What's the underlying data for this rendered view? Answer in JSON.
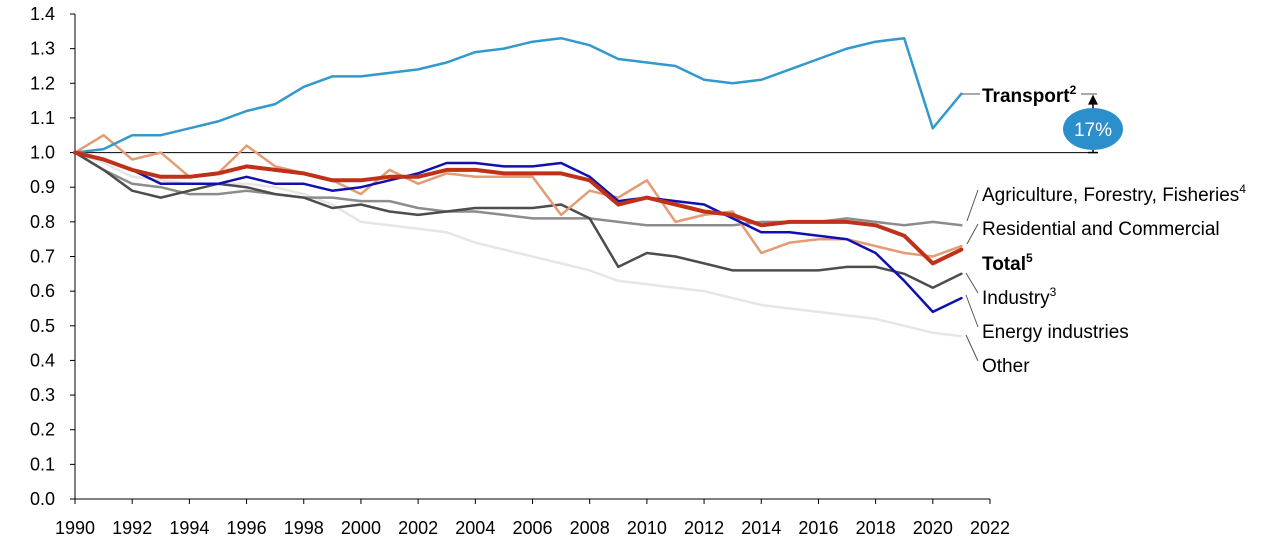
{
  "chart_data": {
    "type": "line",
    "title": "",
    "xlabel": "",
    "ylabel": "",
    "xlim": [
      1990,
      2022
    ],
    "ylim": [
      0,
      1.4
    ],
    "x_ticks": [
      "1990",
      "1992",
      "1994",
      "1996",
      "1998",
      "2000",
      "2002",
      "2004",
      "2006",
      "2008",
      "2010",
      "2012",
      "2014",
      "2016",
      "2018",
      "2020",
      "2022"
    ],
    "y_ticks": [
      "0.0",
      "0.1",
      "0.2",
      "0.3",
      "0.4",
      "0.5",
      "0.6",
      "0.7",
      "0.8",
      "0.9",
      "1.0",
      "1.1",
      "1.2",
      "1.3",
      "1.4"
    ],
    "reference_line": 1.0,
    "x": [
      1990,
      1991,
      1992,
      1993,
      1994,
      1995,
      1996,
      1997,
      1998,
      1999,
      2000,
      2001,
      2002,
      2003,
      2004,
      2005,
      2006,
      2007,
      2008,
      2009,
      2010,
      2011,
      2012,
      2013,
      2014,
      2015,
      2016,
      2017,
      2018,
      2019,
      2020,
      2021
    ],
    "series": [
      {
        "name": "Other",
        "label": "Other",
        "sup": "",
        "bold": false,
        "color": "#e6e6e6",
        "width": 2.5,
        "values": [
          1.0,
          0.97,
          0.93,
          0.92,
          0.91,
          0.91,
          0.91,
          0.9,
          0.88,
          0.85,
          0.8,
          0.79,
          0.78,
          0.77,
          0.74,
          0.72,
          0.7,
          0.68,
          0.66,
          0.63,
          0.62,
          0.61,
          0.6,
          0.58,
          0.56,
          0.55,
          0.54,
          0.53,
          0.52,
          0.5,
          0.48,
          0.47
        ]
      },
      {
        "name": "Agriculture, Forestry, Fisheries",
        "label": "Agriculture, Forestry, Fisheries",
        "sup": "4",
        "bold": false,
        "color": "#8c8c8c",
        "width": 2.5,
        "values": [
          1.0,
          0.95,
          0.91,
          0.9,
          0.88,
          0.88,
          0.89,
          0.88,
          0.87,
          0.87,
          0.86,
          0.86,
          0.84,
          0.83,
          0.83,
          0.82,
          0.81,
          0.81,
          0.81,
          0.8,
          0.79,
          0.79,
          0.79,
          0.79,
          0.8,
          0.8,
          0.8,
          0.81,
          0.8,
          0.79,
          0.8,
          0.79
        ]
      },
      {
        "name": "Industry",
        "label": "Industry",
        "sup": "3",
        "bold": false,
        "color": "#4d4d4d",
        "width": 2.5,
        "values": [
          1.0,
          0.95,
          0.89,
          0.87,
          0.89,
          0.91,
          0.9,
          0.88,
          0.87,
          0.84,
          0.85,
          0.83,
          0.82,
          0.83,
          0.84,
          0.84,
          0.84,
          0.85,
          0.81,
          0.67,
          0.71,
          0.7,
          0.68,
          0.66,
          0.66,
          0.66,
          0.66,
          0.67,
          0.67,
          0.65,
          0.61,
          0.65
        ]
      },
      {
        "name": "Residential and Commercial",
        "label": "Residential and Commercial",
        "sup": "",
        "bold": false,
        "color": "#e39c74",
        "width": 2.5,
        "values": [
          1.0,
          1.05,
          0.98,
          1.0,
          0.93,
          0.94,
          1.02,
          0.96,
          0.94,
          0.92,
          0.88,
          0.95,
          0.91,
          0.94,
          0.93,
          0.93,
          0.93,
          0.82,
          0.89,
          0.87,
          0.92,
          0.8,
          0.82,
          0.83,
          0.71,
          0.74,
          0.75,
          0.75,
          0.73,
          0.71,
          0.7,
          0.73
        ]
      },
      {
        "name": "Energy industries",
        "label": "Energy industries",
        "sup": "",
        "bold": false,
        "color": "#1010b0",
        "width": 2.5,
        "values": [
          1.0,
          0.98,
          0.95,
          0.91,
          0.91,
          0.91,
          0.93,
          0.91,
          0.91,
          0.89,
          0.9,
          0.92,
          0.94,
          0.97,
          0.97,
          0.96,
          0.96,
          0.97,
          0.93,
          0.86,
          0.87,
          0.86,
          0.85,
          0.81,
          0.77,
          0.77,
          0.76,
          0.75,
          0.71,
          0.63,
          0.54,
          0.58
        ]
      },
      {
        "name": "Transport",
        "label": "Transport",
        "sup": "2",
        "bold": true,
        "color": "#3399cc",
        "width": 2.5,
        "values": [
          1.0,
          1.01,
          1.05,
          1.05,
          1.07,
          1.09,
          1.12,
          1.14,
          1.19,
          1.22,
          1.22,
          1.23,
          1.24,
          1.26,
          1.29,
          1.3,
          1.32,
          1.33,
          1.31,
          1.27,
          1.26,
          1.25,
          1.21,
          1.2,
          1.21,
          1.24,
          1.27,
          1.3,
          1.32,
          1.33,
          1.07,
          1.17
        ]
      },
      {
        "name": "Total",
        "label": "Total",
        "sup": "5",
        "bold": true,
        "color": "#c0311a",
        "width": 4,
        "values": [
          1.0,
          0.98,
          0.95,
          0.93,
          0.93,
          0.94,
          0.96,
          0.95,
          0.94,
          0.92,
          0.92,
          0.93,
          0.93,
          0.95,
          0.95,
          0.94,
          0.94,
          0.94,
          0.92,
          0.85,
          0.87,
          0.85,
          0.83,
          0.82,
          0.79,
          0.8,
          0.8,
          0.8,
          0.79,
          0.76,
          0.68,
          0.72
        ]
      }
    ],
    "annotation": {
      "text": "17%",
      "from": 1.0,
      "to": 1.17,
      "color": "#2b8fcc"
    }
  }
}
